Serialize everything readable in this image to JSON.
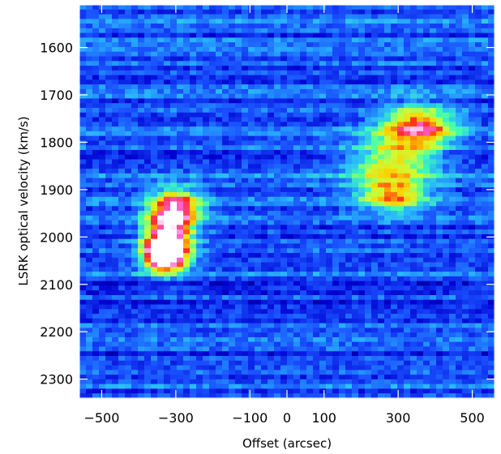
{
  "chart_data": {
    "type": "heatmap",
    "title": "",
    "xlabel": "Offset (arcsec)",
    "ylabel": "LSRK optical velocity  (km/s)",
    "xlim": [
      -560,
      560
    ],
    "ylim": [
      2340,
      1510
    ],
    "x_ticks": [
      -500,
      -300,
      -100,
      0,
      100,
      300,
      500
    ],
    "y_ticks": [
      1600,
      1700,
      1800,
      1900,
      2000,
      2100,
      2200,
      2300
    ],
    "grid": false,
    "colormap": [
      "#000040",
      "#0000d0",
      "#1a50ff",
      "#29b6ff",
      "#3fffb0",
      "#c8ff3a",
      "#ffd000",
      "#ff2a1a",
      "#ff58c8",
      "#ffffff"
    ],
    "emission_features": [
      {
        "x": -300,
        "y": 1940,
        "sx": 45,
        "sy": 28,
        "peak": 0.65
      },
      {
        "x": -320,
        "y": 2000,
        "sx": 42,
        "sy": 35,
        "peak": 0.78
      },
      {
        "x": -330,
        "y": 2040,
        "sx": 38,
        "sy": 22,
        "peak": 0.95
      },
      {
        "x": 365,
        "y": 1765,
        "sx": 60,
        "sy": 25,
        "peak": 0.42
      },
      {
        "x": 330,
        "y": 1790,
        "sx": 70,
        "sy": 45,
        "peak": 0.28
      },
      {
        "x": 270,
        "y": 1860,
        "sx": 75,
        "sy": 40,
        "peak": 0.33
      },
      {
        "x": 290,
        "y": 1915,
        "sx": 55,
        "sy": 22,
        "peak": 0.36
      }
    ]
  }
}
